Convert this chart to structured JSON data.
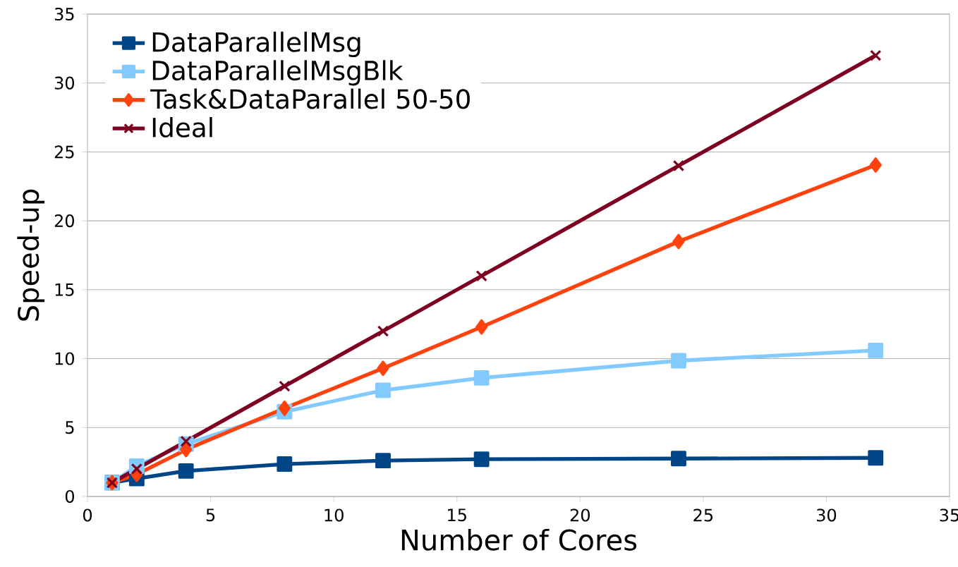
{
  "chart_data": {
    "type": "line",
    "xlabel": "Number of Cores",
    "ylabel": "Speed-up",
    "xlim": [
      0,
      35
    ],
    "xticks": [
      0,
      5,
      10,
      15,
      20,
      25,
      30,
      35
    ],
    "ylim": [
      0,
      35
    ],
    "yticks": [
      0,
      5,
      10,
      15,
      20,
      25,
      30,
      35
    ],
    "grid": "y",
    "legend": "top left",
    "line_style": "solid",
    "x": [
      1,
      2,
      4,
      8,
      12,
      16,
      24,
      32
    ],
    "series": [
      {
        "name": "DataParallelMsg",
        "color": "#004586",
        "marker": "square",
        "values": [
          1,
          1.3,
          1.85,
          2.35,
          2.6,
          2.7,
          2.75,
          2.8
        ]
      },
      {
        "name": "DataParallelMsgBlk",
        "color": "#83caff",
        "marker": "square",
        "values": [
          1,
          2.2,
          3.8,
          6.15,
          7.7,
          8.6,
          9.85,
          10.6
        ]
      },
      {
        "name": "Task&DataParallel 50-50",
        "color": "#ff420e",
        "marker": "diamond",
        "values": [
          1,
          1.6,
          3.4,
          6.4,
          9.3,
          12.3,
          18.5,
          24.05
        ]
      },
      {
        "name": "Ideal",
        "color": "#7e0021",
        "marker": "cross",
        "values": [
          1,
          2,
          4,
          8,
          12,
          16,
          24,
          32
        ]
      }
    ]
  }
}
